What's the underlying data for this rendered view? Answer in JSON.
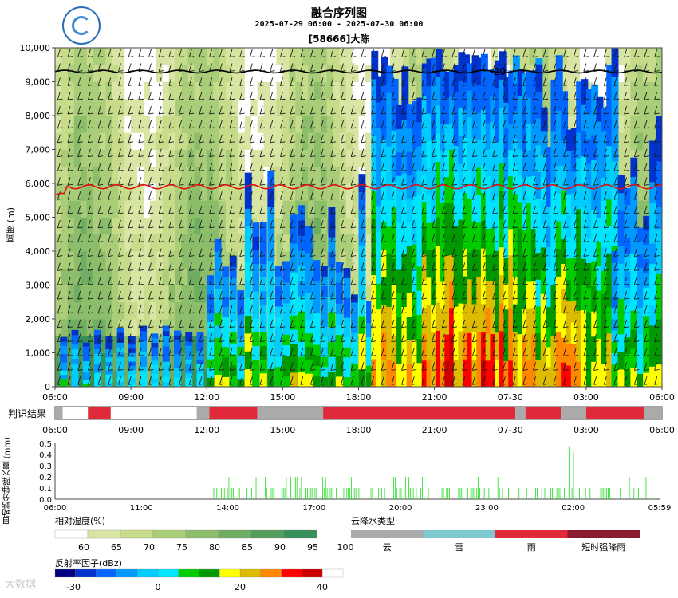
{
  "title": "融合序列图",
  "period": "2025-07-29 06:00 - 2025-07-30 06:00",
  "station": "[58666]大陈",
  "watermark": "大数据",
  "colors": {
    "rh": [
      "#ffffff",
      "#d9e6a3",
      "#c6dc8a",
      "#a9cd78",
      "#8cbd6a",
      "#6fae62",
      "#529d5c",
      "#37905a"
    ],
    "dbz": [
      "#00007e",
      "#0033cc",
      "#0066ff",
      "#0099ff",
      "#00ccff",
      "#00e5ff",
      "#00cc00",
      "#009900",
      "#ffff00",
      "#ddbb00",
      "#ff8800",
      "#ff0000",
      "#cc0000",
      "#ffffff"
    ],
    "type": [
      "#aaaaaa",
      "#7ec8d0",
      "#e02a3a",
      "#8b1a2e"
    ],
    "isotherm_0": "#e01010",
    "isotherm_m20": "#000000",
    "wind": "#1a1a1a",
    "rain_bar": "#22dd22"
  },
  "chart_data": [
    {
      "name": "main",
      "type": "heatmap",
      "ylabel": "高度 (m)",
      "ylim": [
        0,
        10000
      ],
      "yticks": [
        "10,000",
        "9,000",
        "8,000",
        "7,000",
        "6,000",
        "5,000",
        "4,000",
        "3,000",
        "2,000",
        "1,000",
        "0"
      ],
      "xticks": [
        "06:00",
        "09:00",
        "12:00",
        "15:00",
        "18:00",
        "21:00",
        "07-30",
        "03:00",
        "06:00"
      ],
      "isotherm_0_label": "",
      "isotherm_m20_label": "-20",
      "isotherm_0_height_m": 5900,
      "isotherm_m20_height_m": 9300
    },
    {
      "name": "classification",
      "type": "bar",
      "label": "判识结果",
      "xticks": [
        "06:00",
        "09:00",
        "12:00",
        "15:00",
        "18:00",
        "21:00",
        "07-30",
        "03:00",
        "06:00"
      ],
      "segments_hours": [
        {
          "start": 0.0,
          "end": 0.3,
          "type": "云"
        },
        {
          "start": 1.3,
          "end": 2.2,
          "type": "雨"
        },
        {
          "start": 5.6,
          "end": 6.1,
          "type": "云"
        },
        {
          "start": 6.1,
          "end": 8.0,
          "type": "雨"
        },
        {
          "start": 8.0,
          "end": 10.6,
          "type": "云"
        },
        {
          "start": 10.6,
          "end": 12.6,
          "type": "雨"
        },
        {
          "start": 12.6,
          "end": 18.2,
          "type": "雨"
        },
        {
          "start": 18.2,
          "end": 18.6,
          "type": "云"
        },
        {
          "start": 18.6,
          "end": 20.0,
          "type": "雨"
        },
        {
          "start": 20.0,
          "end": 21.0,
          "type": "云"
        },
        {
          "start": 21.0,
          "end": 23.3,
          "type": "雨"
        },
        {
          "start": 23.3,
          "end": 24.0,
          "type": "云"
        }
      ]
    },
    {
      "name": "rainfall",
      "type": "bar",
      "ylabel": "自动站分钟降水量 (mm)",
      "ylim": [
        0,
        0.5
      ],
      "yticks": [
        "0.5",
        "0.4",
        "0.3",
        "0.2",
        "0.1",
        "0.0"
      ],
      "xticks": [
        "06:00",
        "11:00",
        "14:00",
        "17:00",
        "20:00",
        "23:00",
        "02:00",
        "05:59"
      ]
    }
  ],
  "legends": {
    "rh": {
      "title": "相对湿度(%)",
      "labels": [
        "60",
        "65",
        "70",
        "75",
        "80",
        "85",
        "90",
        "95",
        "100"
      ]
    },
    "type": {
      "title": "云降水类型",
      "labels": [
        "云",
        "雪",
        "雨",
        "短时强降雨"
      ]
    },
    "dbz": {
      "title": "反射率因子(dBz)",
      "labels": [
        "-30",
        "0",
        "20",
        "40"
      ]
    }
  }
}
